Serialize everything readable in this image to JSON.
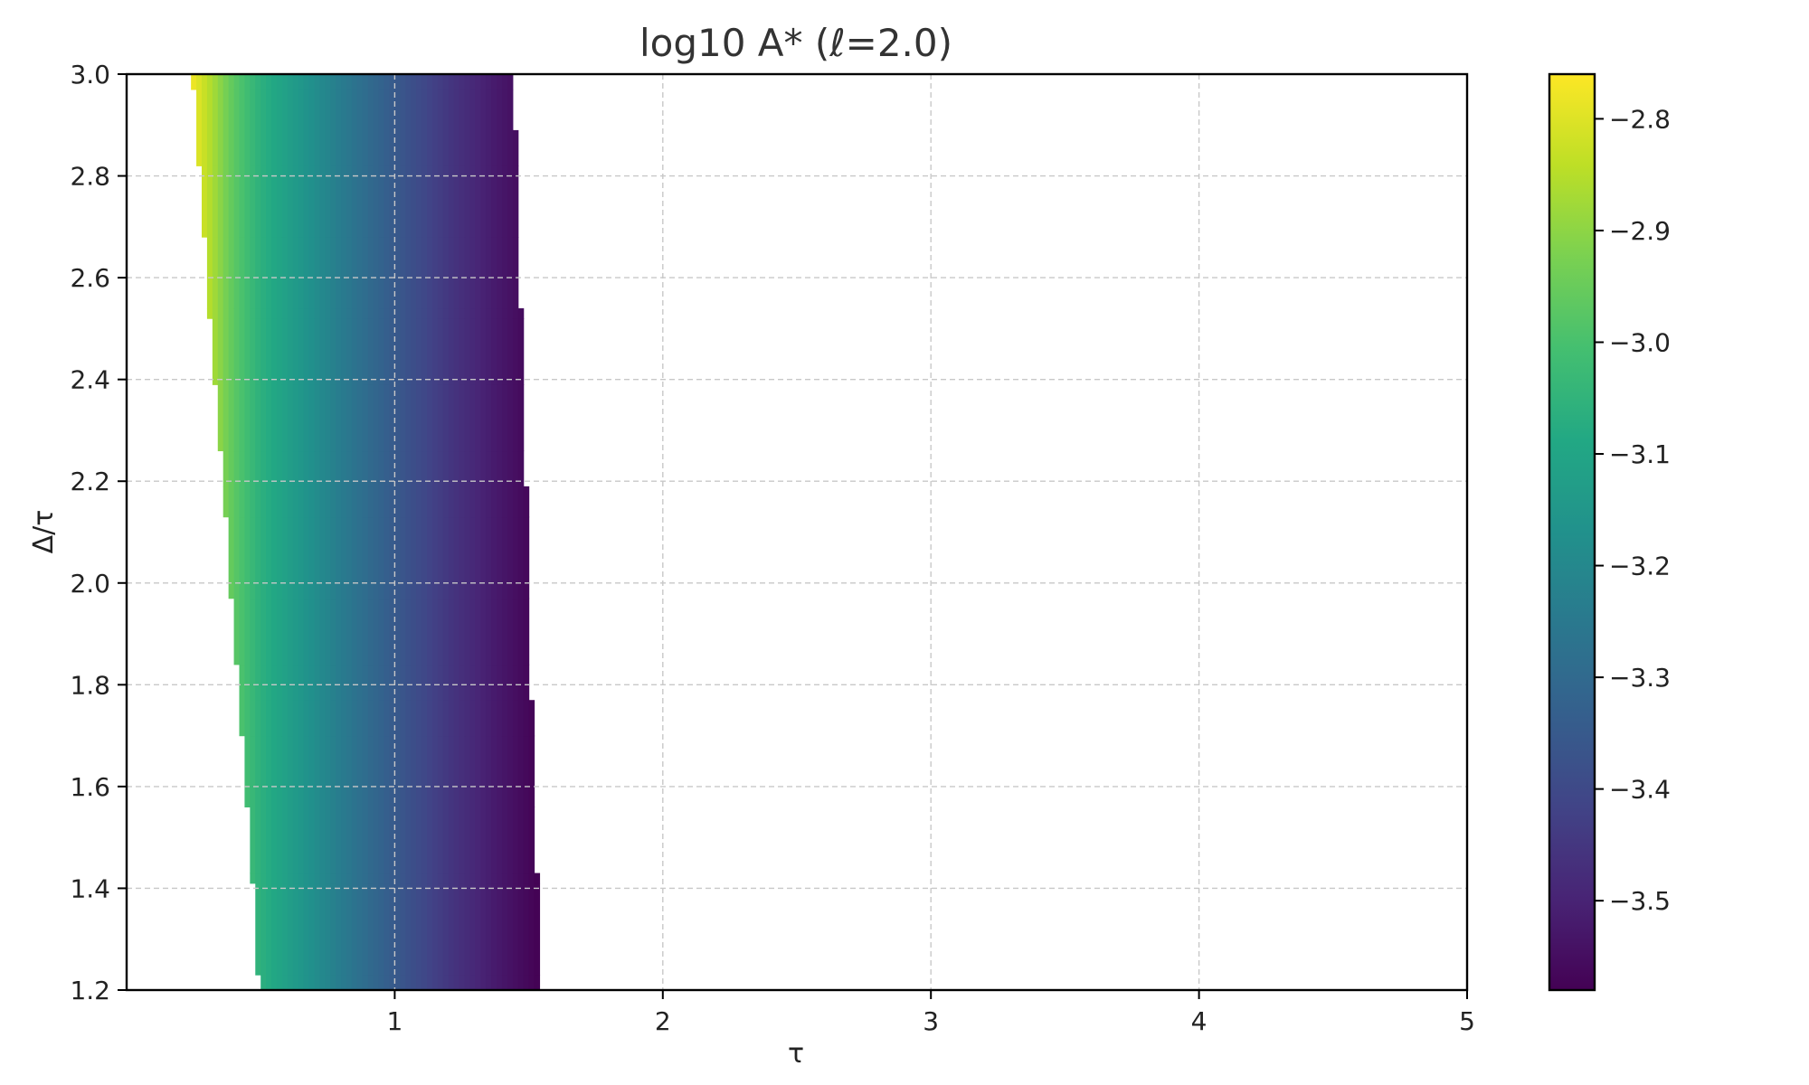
{
  "chart_data": {
    "type": "heatmap",
    "title": "log10 A* (ℓ=2.0)",
    "xlabel": "τ",
    "ylabel": "Δ/τ",
    "xlim": [
      0,
      5
    ],
    "ylim": [
      1.2,
      3.0
    ],
    "x_ticks": [
      {
        "value": 1,
        "label": "1"
      },
      {
        "value": 2,
        "label": "2"
      },
      {
        "value": 3,
        "label": "3"
      },
      {
        "value": 4,
        "label": "4"
      },
      {
        "value": 5,
        "label": "5"
      }
    ],
    "y_ticks": [
      {
        "value": 1.2,
        "label": "1.2"
      },
      {
        "value": 1.4,
        "label": "1.4"
      },
      {
        "value": 1.6,
        "label": "1.6"
      },
      {
        "value": 1.8,
        "label": "1.8"
      },
      {
        "value": 2.0,
        "label": "2.0"
      },
      {
        "value": 2.2,
        "label": "2.2"
      },
      {
        "value": 2.4,
        "label": "2.4"
      },
      {
        "value": 2.6,
        "label": "2.6"
      },
      {
        "value": 2.8,
        "label": "2.8"
      },
      {
        "value": 3.0,
        "label": "3.0"
      }
    ],
    "grid": true,
    "colormap": "viridis",
    "colorbar": {
      "range": [
        -3.58,
        -2.76
      ],
      "ticks": [
        {
          "value": -2.8,
          "label": "−2.8"
        },
        {
          "value": -2.9,
          "label": "−2.9"
        },
        {
          "value": -3.0,
          "label": "−3.0"
        },
        {
          "value": -3.1,
          "label": "−3.1"
        },
        {
          "value": -3.2,
          "label": "−3.2"
        },
        {
          "value": -3.3,
          "label": "−3.3"
        },
        {
          "value": -3.4,
          "label": "−3.4"
        },
        {
          "value": -3.5,
          "label": "−3.5"
        }
      ]
    },
    "valid_region": {
      "description_rows": [
        {
          "y0": 1.2,
          "y1": 1.23,
          "tau_min": 0.5,
          "tau_max": 1.54
        },
        {
          "y0": 1.23,
          "y1": 1.41,
          "tau_min": 0.48,
          "tau_max": 1.54
        },
        {
          "y0": 1.41,
          "y1": 1.43,
          "tau_min": 0.46,
          "tau_max": 1.54
        },
        {
          "y0": 1.43,
          "y1": 1.56,
          "tau_min": 0.46,
          "tau_max": 1.52
        },
        {
          "y0": 1.56,
          "y1": 1.7,
          "tau_min": 0.44,
          "tau_max": 1.52
        },
        {
          "y0": 1.7,
          "y1": 1.77,
          "tau_min": 0.42,
          "tau_max": 1.52
        },
        {
          "y0": 1.77,
          "y1": 1.84,
          "tau_min": 0.42,
          "tau_max": 1.5
        },
        {
          "y0": 1.84,
          "y1": 1.97,
          "tau_min": 0.4,
          "tau_max": 1.5
        },
        {
          "y0": 1.97,
          "y1": 2.13,
          "tau_min": 0.38,
          "tau_max": 1.5
        },
        {
          "y0": 2.13,
          "y1": 2.19,
          "tau_min": 0.36,
          "tau_max": 1.5
        },
        {
          "y0": 2.19,
          "y1": 2.26,
          "tau_min": 0.36,
          "tau_max": 1.48
        },
        {
          "y0": 2.26,
          "y1": 2.39,
          "tau_min": 0.34,
          "tau_max": 1.48
        },
        {
          "y0": 2.39,
          "y1": 2.52,
          "tau_min": 0.32,
          "tau_max": 1.48
        },
        {
          "y0": 2.52,
          "y1": 2.54,
          "tau_min": 0.3,
          "tau_max": 1.48
        },
        {
          "y0": 2.54,
          "y1": 2.68,
          "tau_min": 0.3,
          "tau_max": 1.46
        },
        {
          "y0": 2.68,
          "y1": 2.82,
          "tau_min": 0.28,
          "tau_max": 1.46
        },
        {
          "y0": 2.82,
          "y1": 2.89,
          "tau_min": 0.26,
          "tau_max": 1.46
        },
        {
          "y0": 2.89,
          "y1": 2.97,
          "tau_min": 0.26,
          "tau_max": 1.44
        },
        {
          "y0": 2.97,
          "y1": 3.0,
          "tau_min": 0.24,
          "tau_max": 1.44
        }
      ],
      "value_vs_tau": [
        {
          "tau": 0.24,
          "value": -2.77
        },
        {
          "tau": 0.3,
          "value": -2.84
        },
        {
          "tau": 0.4,
          "value": -2.97
        },
        {
          "tau": 0.5,
          "value": -3.06
        },
        {
          "tau": 0.6,
          "value": -3.12
        },
        {
          "tau": 0.8,
          "value": -3.24
        },
        {
          "tau": 1.0,
          "value": -3.35
        },
        {
          "tau": 1.2,
          "value": -3.45
        },
        {
          "tau": 1.4,
          "value": -3.53
        },
        {
          "tau": 1.54,
          "value": -3.58
        }
      ]
    }
  }
}
